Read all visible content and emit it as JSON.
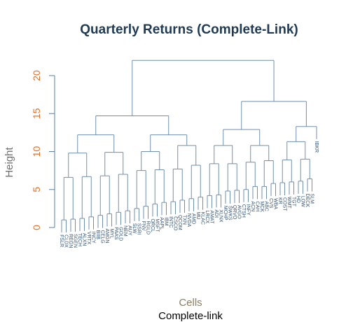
{
  "chart_data": {
    "type": "dendrogram",
    "title": "Quarterly Returns (Complete-Link)",
    "ylabel": "Height",
    "xlabel": "Cells",
    "subtitle": "Complete-link",
    "ylim": [
      0,
      23
    ],
    "yticks": [
      0,
      5,
      10,
      15,
      20
    ],
    "leaves": [
      "FSLR",
      "CLDX",
      "REGN",
      "SGEN",
      "TECH",
      "ALXN",
      "VRTX",
      "INCY",
      "BIIB",
      "CELG",
      "AMGN",
      "MYL",
      "PAAS",
      "GOLD",
      "NEM",
      "AUY",
      "SLW",
      "SSRI",
      "FNV",
      "RGLD",
      "ORCL",
      "MSFT",
      "AAPL",
      "IBM",
      "INTC",
      "CSCO",
      "QCOM",
      "TXN",
      "NVDA",
      "AMD",
      "MU",
      "KLAC",
      "LRCX",
      "AMAT",
      "ADI",
      "XLNX",
      "MCHP",
      "SWKS",
      "QRVO",
      "AVGO",
      "CTSH",
      "INFY",
      "ACN",
      "CAH",
      "MCK",
      "ABC",
      "CVS",
      "WBA",
      "KR",
      "COST",
      "WMT",
      "TGT",
      "HD",
      "LOW",
      "DECK",
      "SLM",
      "IBKR"
    ],
    "heights": [
      22.0,
      13.3,
      12.9,
      12.2,
      16.6,
      14.7,
      12.2,
      10.8,
      8.8,
      8.4,
      7.5,
      6.4,
      10.8,
      10.0,
      8.2,
      6.6,
      5.9,
      5.0,
      10.8,
      9.9,
      9.0,
      8.6,
      7.7,
      6.7,
      6.1,
      5.8,
      5.4,
      4.9,
      4.3,
      4.0,
      3.6,
      3.3,
      9.8,
      8.4,
      7.6,
      6.8,
      6.0,
      5.4,
      4.8,
      4.2,
      3.8,
      3.4,
      3.1,
      2.8,
      2.5,
      2.2,
      2.0,
      1.8,
      1.6,
      1.4,
      1.2,
      1.1,
      1.0,
      11.3,
      8.9,
      7.0
    ]
  }
}
